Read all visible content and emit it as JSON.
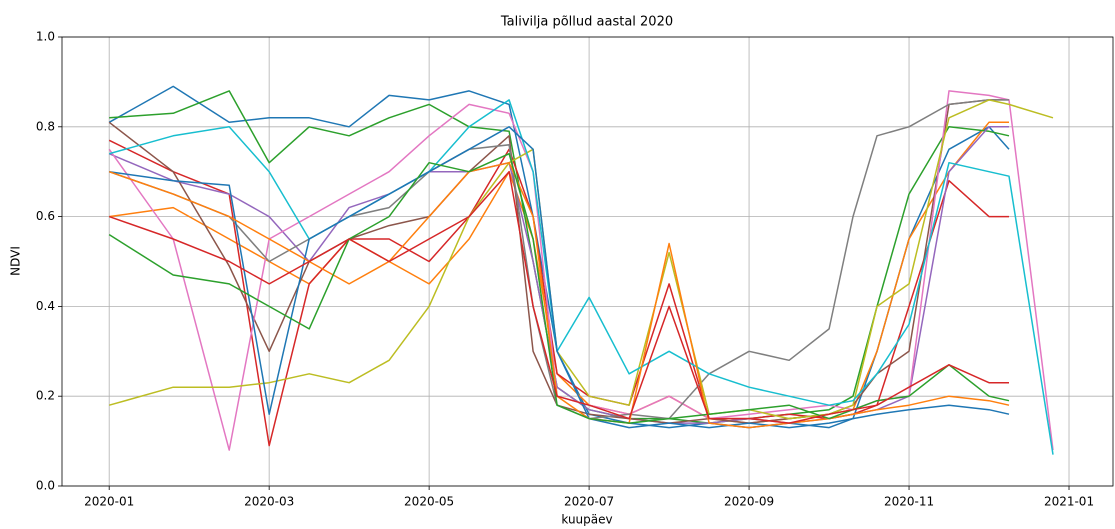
{
  "chart_data": {
    "type": "line",
    "title": "Talivilja põllud aastal 2020",
    "xlabel": "kuupäev",
    "ylabel": "NDVI",
    "x": [
      0,
      0.8,
      1.5,
      2.0,
      2.5,
      3.0,
      3.5,
      4.0,
      4.5,
      5.0,
      5.3,
      5.6,
      6.0,
      6.5,
      7.0,
      7.5,
      8.0,
      8.5,
      9.0,
      9.3,
      9.6,
      10.0,
      10.5,
      11.0,
      11.25,
      11.8
    ],
    "xlim": [
      -0.59,
      12.55
    ],
    "xticks": [
      {
        "value": 0,
        "label": "2020-01"
      },
      {
        "value": 2,
        "label": "2020-03"
      },
      {
        "value": 4,
        "label": "2020-05"
      },
      {
        "value": 6,
        "label": "2020-07"
      },
      {
        "value": 8,
        "label": "2020-09"
      },
      {
        "value": 10,
        "label": "2020-11"
      },
      {
        "value": 12,
        "label": "2021-01"
      }
    ],
    "ylim": [
      0,
      1
    ],
    "yticks": [
      {
        "value": 0,
        "label": "0.0"
      },
      0.2,
      0.4,
      0.6,
      0.8,
      {
        "value": 1,
        "label": "1.0"
      }
    ],
    "grid": true,
    "series": [
      {
        "color": "#1f77b4",
        "values": [
          0.81,
          0.89,
          0.81,
          0.82,
          0.82,
          0.8,
          0.87,
          0.86,
          0.88,
          0.85,
          0.6,
          0.3,
          0.16,
          0.14,
          0.13,
          0.14,
          0.13,
          0.14,
          0.13,
          0.15,
          0.3,
          0.55,
          0.75,
          0.8,
          0.75,
          null
        ]
      },
      {
        "color": "#ff7f0e",
        "values": [
          0.6,
          0.62,
          0.55,
          0.5,
          0.45,
          0.55,
          0.5,
          0.45,
          0.55,
          0.7,
          0.55,
          0.25,
          0.18,
          0.16,
          0.2,
          0.15,
          0.14,
          0.15,
          0.16,
          0.17,
          0.3,
          0.55,
          0.7,
          0.81,
          0.81,
          null
        ]
      },
      {
        "color": "#2ca02c",
        "values": [
          0.82,
          0.83,
          0.88,
          0.72,
          0.8,
          0.78,
          0.82,
          0.85,
          0.8,
          0.79,
          0.5,
          0.22,
          0.17,
          0.15,
          0.15,
          0.14,
          0.15,
          0.16,
          0.17,
          0.2,
          0.4,
          0.65,
          0.8,
          0.79,
          0.78,
          null
        ]
      },
      {
        "color": "#d62728",
        "values": [
          0.77,
          0.7,
          0.65,
          0.09,
          0.45,
          0.55,
          0.55,
          0.5,
          0.6,
          0.75,
          0.6,
          0.25,
          0.2,
          0.18,
          0.45,
          0.15,
          0.15,
          0.16,
          0.15,
          0.16,
          0.18,
          0.4,
          0.68,
          0.6,
          0.6,
          null
        ]
      },
      {
        "color": "#9467bd",
        "values": [
          0.74,
          0.68,
          0.65,
          0.6,
          0.5,
          0.62,
          0.65,
          0.7,
          0.7,
          0.72,
          0.5,
          0.22,
          0.17,
          0.15,
          0.14,
          0.14,
          0.15,
          0.14,
          0.15,
          0.16,
          0.17,
          0.2,
          0.7,
          0.8,
          0.8,
          null
        ]
      },
      {
        "color": "#8c564b",
        "values": [
          0.81,
          0.7,
          0.49,
          0.3,
          0.5,
          0.55,
          0.58,
          0.6,
          0.7,
          0.78,
          0.3,
          0.18,
          0.16,
          0.15,
          0.14,
          0.15,
          0.14,
          0.15,
          0.16,
          0.18,
          0.25,
          0.3,
          0.85,
          0.86,
          0.86,
          null
        ]
      },
      {
        "color": "#e377c2",
        "values": [
          0.75,
          0.55,
          0.08,
          0.55,
          0.6,
          0.65,
          0.7,
          0.78,
          0.85,
          0.83,
          0.7,
          0.2,
          0.18,
          0.16,
          0.2,
          0.15,
          0.16,
          0.17,
          0.18,
          0.17,
          0.19,
          0.2,
          0.88,
          0.87,
          0.86,
          0.08
        ]
      },
      {
        "color": "#7f7f7f",
        "values": [
          0.7,
          0.65,
          0.6,
          0.5,
          0.55,
          0.6,
          0.62,
          0.7,
          0.75,
          0.76,
          0.4,
          0.18,
          0.15,
          0.16,
          0.15,
          0.25,
          0.3,
          0.28,
          0.35,
          0.6,
          0.78,
          0.8,
          0.85,
          0.86,
          0.86,
          null
        ]
      },
      {
        "color": "#bcbd22",
        "values": [
          0.18,
          0.22,
          0.22,
          0.23,
          0.25,
          0.23,
          0.28,
          0.4,
          0.6,
          0.72,
          0.75,
          0.3,
          0.2,
          0.18,
          0.52,
          0.16,
          0.17,
          0.15,
          0.16,
          0.18,
          0.4,
          0.45,
          0.82,
          0.86,
          0.85,
          0.82
        ]
      },
      {
        "color": "#17becf",
        "values": [
          0.74,
          0.78,
          0.8,
          0.7,
          0.55,
          0.6,
          0.65,
          0.7,
          0.8,
          0.86,
          0.7,
          0.3,
          0.42,
          0.25,
          0.3,
          0.25,
          0.22,
          0.2,
          0.18,
          0.19,
          0.25,
          0.36,
          0.72,
          0.7,
          0.69,
          0.07
        ]
      },
      {
        "color": "#1f77b4",
        "values": [
          0.7,
          0.68,
          0.67,
          0.16,
          0.55,
          0.6,
          0.65,
          0.7,
          0.75,
          0.8,
          0.75,
          0.3,
          0.15,
          0.13,
          0.14,
          0.13,
          0.14,
          0.13,
          0.14,
          0.15,
          0.16,
          0.17,
          0.18,
          0.17,
          0.16,
          null
        ]
      },
      {
        "color": "#ff7f0e",
        "values": [
          0.7,
          0.65,
          0.6,
          0.55,
          0.5,
          0.45,
          0.5,
          0.6,
          0.7,
          0.72,
          0.6,
          0.2,
          0.15,
          0.14,
          0.54,
          0.14,
          0.13,
          0.14,
          0.15,
          0.16,
          0.17,
          0.18,
          0.2,
          0.19,
          0.18,
          null
        ]
      },
      {
        "color": "#2ca02c",
        "values": [
          0.56,
          0.47,
          0.45,
          0.4,
          0.35,
          0.55,
          0.6,
          0.72,
          0.7,
          0.74,
          0.55,
          0.18,
          0.15,
          0.14,
          0.15,
          0.16,
          0.17,
          0.18,
          0.15,
          0.17,
          0.19,
          0.2,
          0.27,
          0.2,
          0.19,
          null
        ]
      },
      {
        "color": "#d62728",
        "values": [
          0.6,
          0.55,
          0.5,
          0.45,
          0.5,
          0.55,
          0.5,
          0.55,
          0.6,
          0.7,
          0.4,
          0.2,
          0.18,
          0.15,
          0.4,
          0.15,
          0.15,
          0.14,
          0.16,
          0.17,
          0.18,
          0.22,
          0.27,
          0.23,
          0.23,
          null
        ]
      }
    ]
  }
}
